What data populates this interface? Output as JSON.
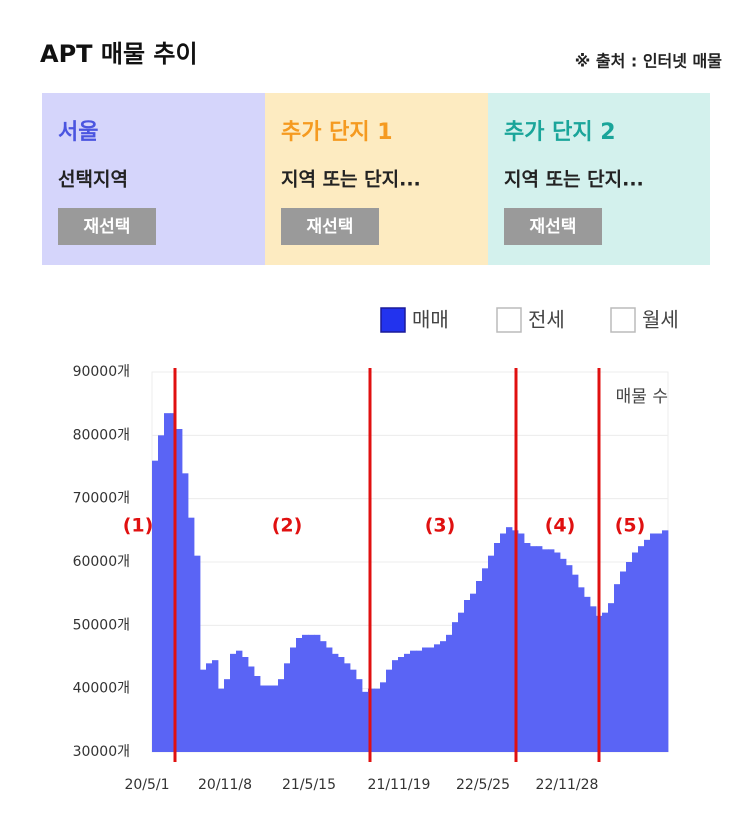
{
  "header": {
    "title": "APT 매물 추이",
    "source": "※ 출처 : 인터넷 매물"
  },
  "cards": [
    {
      "title": "서울",
      "subtitle": "선택지역",
      "button": "재선택"
    },
    {
      "title": "추가 단지 1",
      "subtitle": "지역 또는 단지...",
      "button": "재선택"
    },
    {
      "title": "추가 단지 2",
      "subtitle": "지역 또는 단지...",
      "button": "재선택"
    }
  ],
  "chart_data": {
    "type": "bar",
    "legend_options": [
      {
        "name": "매매",
        "checked": true,
        "color": "#2233ee"
      },
      {
        "name": "전세",
        "checked": false,
        "color": "#2233ee"
      },
      {
        "name": "월세",
        "checked": false,
        "color": "#2233ee"
      }
    ],
    "series": [
      {
        "name": "매물 수",
        "color": "#5a64f5",
        "values": [
          76000,
          80000,
          83500,
          83500,
          81000,
          74000,
          67000,
          61000,
          43000,
          44000,
          44500,
          40000,
          41500,
          45500,
          46000,
          45000,
          43500,
          42000,
          40500,
          40500,
          40500,
          41500,
          44000,
          46500,
          48000,
          48500,
          48500,
          48500,
          47500,
          46500,
          45500,
          45000,
          44000,
          43000,
          41500,
          39500,
          40000,
          40000,
          41000,
          43000,
          44500,
          45000,
          45500,
          46000,
          46000,
          46500,
          46500,
          47000,
          47500,
          48500,
          50500,
          52000,
          54000,
          55000,
          57000,
          59000,
          61000,
          63000,
          64500,
          65500,
          65000,
          64500,
          63000,
          62500,
          62500,
          62000,
          62000,
          61500,
          60500,
          59500,
          58000,
          56000,
          54500,
          53000,
          51500,
          52000,
          53500,
          56500,
          58500,
          60000,
          61500,
          62500,
          63500,
          64500,
          64500,
          65000
        ]
      }
    ],
    "categories": [
      "20/5/1",
      null,
      null,
      null,
      null,
      null,
      null,
      null,
      null,
      null,
      null,
      null,
      null,
      "20/11/8",
      null,
      null,
      null,
      null,
      null,
      null,
      null,
      null,
      null,
      null,
      null,
      null,
      null,
      "21/5/15",
      null,
      null,
      null,
      null,
      null,
      null,
      null,
      null,
      null,
      null,
      null,
      null,
      null,
      null,
      "21/11/19",
      null,
      null,
      null,
      null,
      null,
      null,
      null,
      null,
      null,
      null,
      null,
      null,
      null,
      "22/5/25",
      null,
      null,
      null,
      null,
      null,
      null,
      null,
      null,
      null,
      null,
      null,
      null,
      null,
      "22/11/28",
      null,
      null,
      null,
      null,
      null,
      null,
      null,
      null,
      null,
      null,
      null,
      null,
      null,
      null,
      null
    ],
    "ylim": [
      30000,
      90000
    ],
    "yticks": [
      {
        "value": 30000,
        "label": "30000개"
      },
      {
        "value": 40000,
        "label": "40000개"
      },
      {
        "value": 50000,
        "label": "50000개"
      },
      {
        "value": 60000,
        "label": "60000개"
      },
      {
        "value": 70000,
        "label": "70000개"
      },
      {
        "value": 80000,
        "label": "80000개"
      },
      {
        "value": 90000,
        "label": "90000개"
      }
    ],
    "grid": true,
    "annotations": [
      "(1)",
      "(2)",
      "(3)",
      "(4)",
      "(5)"
    ]
  }
}
